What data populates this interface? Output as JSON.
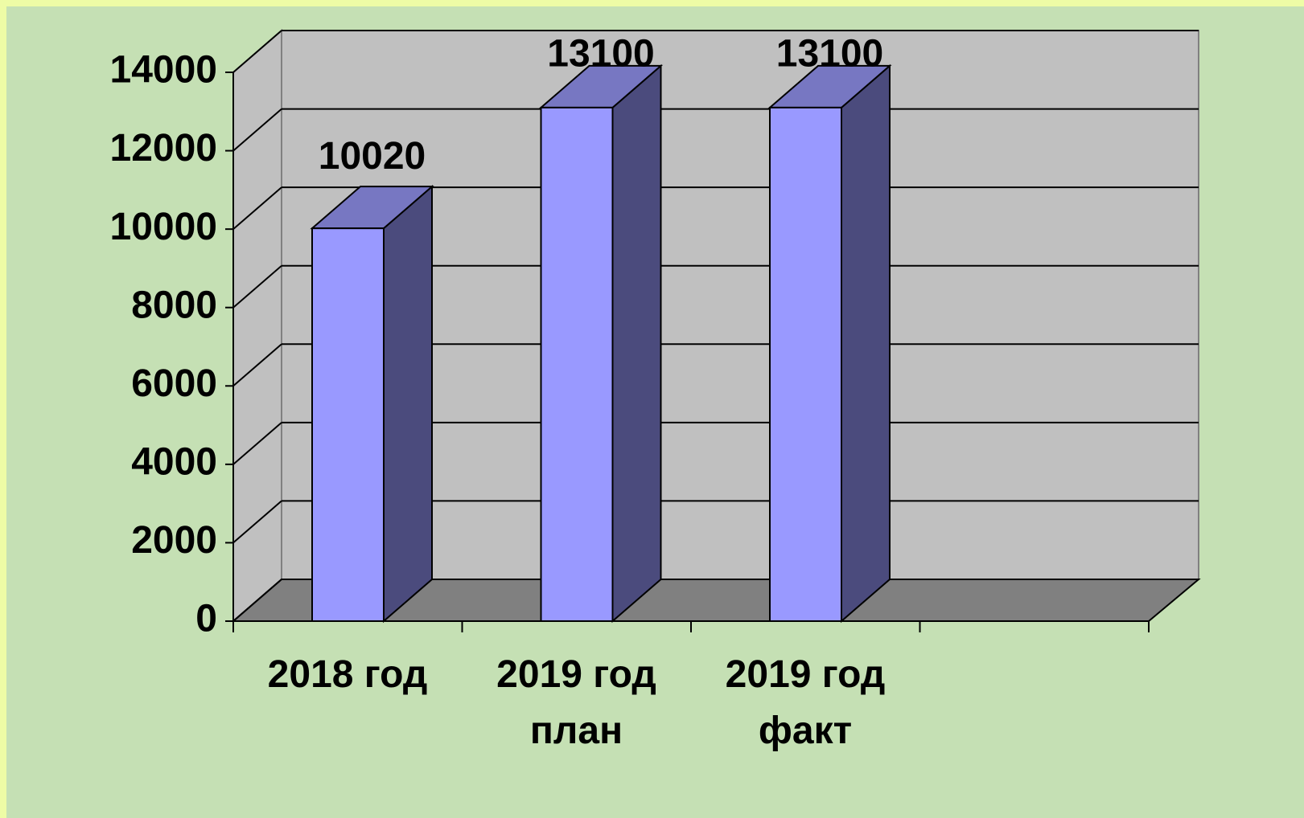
{
  "chart_data": {
    "type": "bar3d",
    "categories": [
      "2018 год",
      "2019 год план",
      "2019 год факт",
      null
    ],
    "values": [
      10020,
      13100,
      13100,
      null
    ],
    "colors": {
      "front": "#9999ff",
      "top": "#7777c2",
      "side": "#4b4b7d"
    },
    "ylim": [
      0,
      14000
    ],
    "yticks": [
      0,
      2000,
      4000,
      6000,
      8000,
      10000,
      12000,
      14000
    ],
    "grid": true
  }
}
